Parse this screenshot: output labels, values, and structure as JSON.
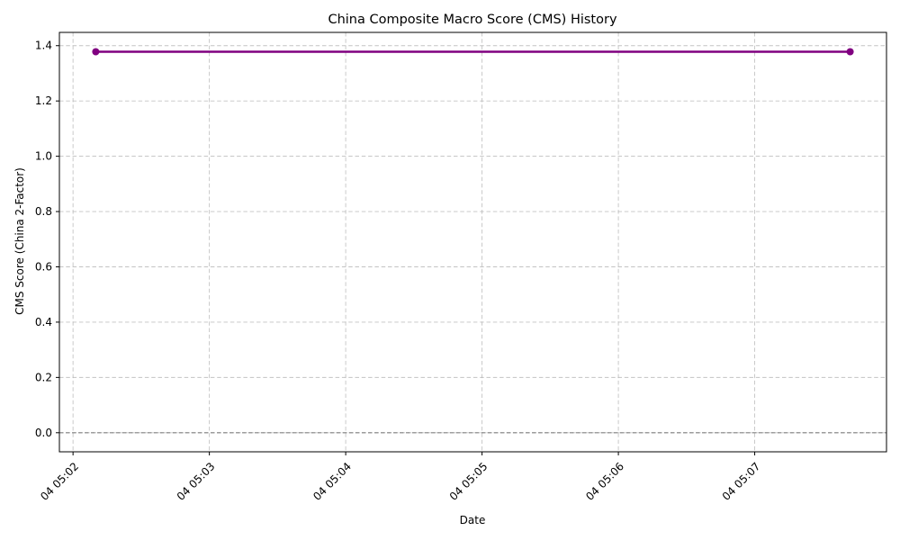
{
  "chart_data": {
    "type": "line",
    "title": "China Composite Macro Score (CMS) History",
    "xlabel": "Date",
    "ylabel": "CMS Score (China 2-Factor)",
    "x_ticks": [
      "04 05:02",
      "04 05:03",
      "04 05:04",
      "04 05:05",
      "04 05:06",
      "04 05:07"
    ],
    "y_ticks": [
      "0.0",
      "0.2",
      "0.4",
      "0.6",
      "0.8",
      "1.0",
      "1.2",
      "1.4"
    ],
    "xlim": [
      "05:01:54",
      "05:07:58"
    ],
    "ylim": [
      -0.069,
      1.448
    ],
    "grid": true,
    "reference_line": {
      "y": 0,
      "color": "#808080",
      "style": "dashed"
    },
    "series": [
      {
        "color": "#800080",
        "marker": "circle",
        "x": [
          "05:02:10",
          "05:07:42"
        ],
        "y": [
          1.378,
          1.378
        ]
      }
    ]
  }
}
